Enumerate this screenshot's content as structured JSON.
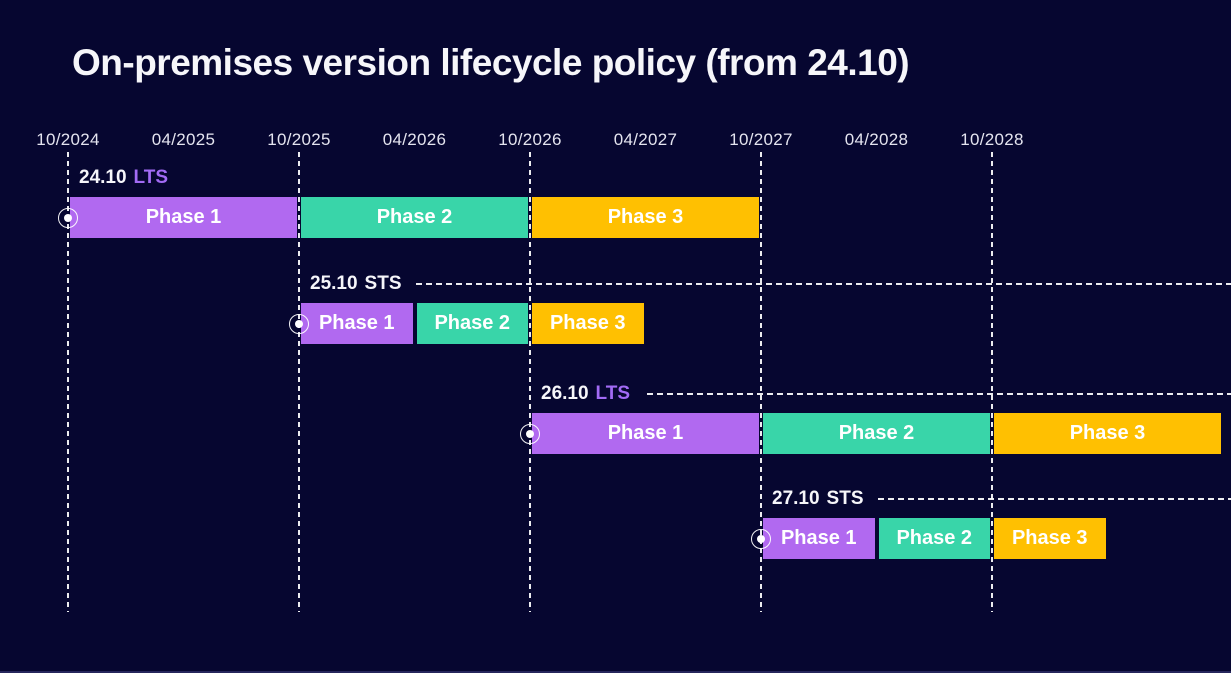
{
  "title": "On-premises version lifecycle policy (from 24.10)",
  "colors": {
    "background": "#060630",
    "phase_colors": [
      "#b169f0",
      "#39d5a9",
      "#ffc001"
    ],
    "channel_colors": {
      "LTS": "#a26bf5",
      "STS": "#f6f6fa"
    },
    "axis_text": "#e4e4ef",
    "title_text": "#f6f6fa",
    "dashed_line": "#ffffff",
    "bottom_strip": "#26265c"
  },
  "chart_data": {
    "type": "gantt",
    "title": "On-premises version lifecycle policy (from 24.10)",
    "x_axis": {
      "unit": "month/year",
      "tick_labels": [
        "10/2024",
        "04/2025",
        "10/2025",
        "04/2026",
        "10/2026",
        "04/2027",
        "10/2027",
        "04/2028",
        "10/2028"
      ],
      "gridlines_at": [
        "10/2024",
        "10/2025",
        "10/2026",
        "10/2027",
        "10/2028"
      ],
      "range_start": "10/2024",
      "range_end": "10/2029"
    },
    "legend": "none",
    "rows": [
      {
        "version": "24.10",
        "channel": "LTS",
        "release_marker_at": "10/2024",
        "leader_line": false,
        "phases": [
          {
            "name": "Phase 1",
            "start": "10/2024",
            "end": "10/2025"
          },
          {
            "name": "Phase 2",
            "start": "10/2025",
            "end": "10/2026"
          },
          {
            "name": "Phase 3",
            "start": "10/2026",
            "end": "10/2027"
          }
        ]
      },
      {
        "version": "25.10",
        "channel": "STS",
        "release_marker_at": "10/2025",
        "leader_line": true,
        "phases": [
          {
            "name": "Phase 1",
            "start": "10/2025",
            "end": "04/2026"
          },
          {
            "name": "Phase 2",
            "start": "04/2026",
            "end": "10/2026"
          },
          {
            "name": "Phase 3",
            "start": "10/2026",
            "end": "04/2027"
          }
        ]
      },
      {
        "version": "26.10",
        "channel": "LTS",
        "release_marker_at": "10/2026",
        "leader_line": true,
        "phases": [
          {
            "name": "Phase 1",
            "start": "10/2026",
            "end": "10/2027"
          },
          {
            "name": "Phase 2",
            "start": "10/2027",
            "end": "10/2028"
          },
          {
            "name": "Phase 3",
            "start": "10/2028",
            "end": "10/2029"
          }
        ]
      },
      {
        "version": "27.10",
        "channel": "STS",
        "release_marker_at": "10/2027",
        "leader_line": true,
        "phases": [
          {
            "name": "Phase 1",
            "start": "10/2027",
            "end": "04/2028"
          },
          {
            "name": "Phase 2",
            "start": "04/2028",
            "end": "10/2028"
          },
          {
            "name": "Phase 3",
            "start": "10/2028",
            "end": "04/2029"
          }
        ]
      }
    ]
  }
}
